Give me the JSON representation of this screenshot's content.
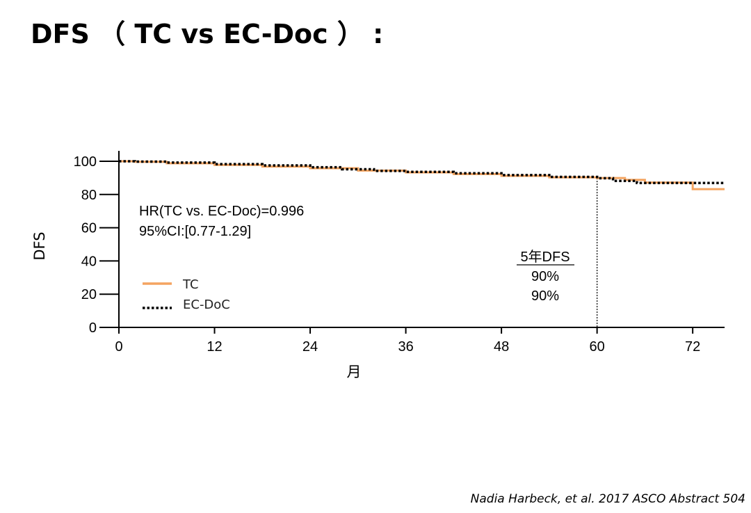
{
  "slide": {
    "title": "DFS （ TC vs EC-Doc ） :",
    "citation": "Nadia Harbeck, et al. 2017 ASCO Abstract  504"
  },
  "chart_data": {
    "type": "line",
    "xlabel": "月",
    "ylabel": "DFS",
    "xlim": [
      0,
      76
    ],
    "ylim": [
      0,
      100
    ],
    "xticks": [
      0,
      12,
      24,
      36,
      48,
      60,
      72
    ],
    "yticks": [
      0,
      20,
      40,
      60,
      80,
      100
    ],
    "grid": false,
    "legend_position": "lower-left",
    "series": [
      {
        "name": "TC",
        "color": "#f4a460",
        "style": "solid",
        "step": true,
        "x": [
          0,
          2,
          6,
          12,
          18,
          24,
          30,
          36,
          42,
          48,
          54,
          60,
          63.5,
          66,
          72,
          76
        ],
        "y": [
          100,
          99.7,
          98.8,
          97.8,
          96.8,
          95.8,
          94.4,
          93.3,
          92.3,
          91.2,
          90.3,
          89.9,
          88.8,
          87.2,
          83.2,
          83.2
        ]
      },
      {
        "name": "EC-DoC",
        "color": "#000000",
        "style": "dotted",
        "step": true,
        "x": [
          0,
          2,
          6,
          12,
          18,
          24,
          28,
          32,
          36,
          42,
          48,
          54,
          60,
          62,
          65,
          70,
          76
        ],
        "y": [
          100,
          99.8,
          99.2,
          98.3,
          97.5,
          96.4,
          95.2,
          94.2,
          93.6,
          92.8,
          91.7,
          90.6,
          89.8,
          88.2,
          86.9,
          86.9,
          86.9
        ]
      }
    ],
    "annotations": {
      "hr": "HR(TC vs. EC-Doc)=0.996",
      "ci": "95%CI:[0.77-1.29]",
      "dfs_header": "5年DFS",
      "dfs_tc": "90%",
      "dfs_ecdoc": "90%",
      "reference_x": 60
    }
  }
}
